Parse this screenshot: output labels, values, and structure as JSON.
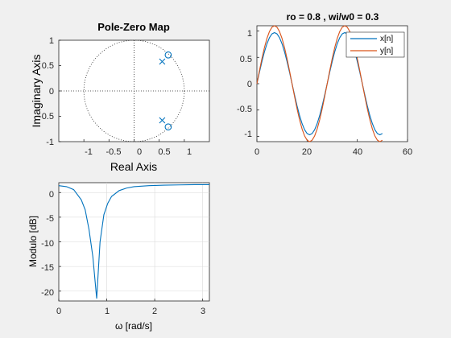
{
  "colors": {
    "blue": "#0072BD",
    "orange": "#D95319",
    "axis": "#262626",
    "grid": "#d9d9d9",
    "figure_bg": "#f0f0f0",
    "axes_bg": "#ffffff"
  },
  "chart_data": [
    {
      "type": "scatter",
      "title": "Pole-Zero Map",
      "xlabel": "Real Axis",
      "ylabel": "Imaginary Axis",
      "xlim": [
        -1.5,
        1.5
      ],
      "ylim": [
        -1,
        1
      ],
      "x_ticks": [
        "-1",
        "-0.5",
        "0",
        "0.5",
        "1"
      ],
      "y_ticks": [
        "1",
        "0.5",
        "0",
        "-0.5",
        "-1"
      ],
      "unit_circle": true,
      "poles": [
        [
          0.56,
          0.58
        ],
        [
          0.56,
          -0.58
        ]
      ],
      "zeros": [
        [
          0.68,
          0.71
        ],
        [
          0.68,
          -0.71
        ]
      ],
      "grid": false
    },
    {
      "type": "line",
      "title": "ro = 0.8 , wi/w0 = 0.3",
      "xlim": [
        0,
        60
      ],
      "ylim": [
        -1.1,
        1.1
      ],
      "x_ticks": [
        "0",
        "20",
        "40",
        "60"
      ],
      "y_ticks": [
        "1",
        "0.5",
        "0",
        "-0.5",
        "-1"
      ],
      "legend_position": "top-right",
      "series": [
        {
          "name": "x[n]",
          "color": "#0072BD",
          "amplitude": 0.97,
          "frequency_rad": 0.2244,
          "length": 51
        },
        {
          "name": "y[n]",
          "color": "#D95319",
          "amplitude": 1.1,
          "frequency_rad": 0.2244,
          "length": 51
        }
      ],
      "grid": false
    },
    {
      "type": "line",
      "xlabel": "ω [rad/s]",
      "ylabel": "Modulo [dB]",
      "xlim": [
        0,
        3.14
      ],
      "ylim": [
        -22,
        2
      ],
      "x_ticks": [
        "0",
        "1",
        "2",
        "3"
      ],
      "y_ticks": [
        "0",
        "-5",
        "-10",
        "-15",
        "-20"
      ],
      "notch_frequency": 0.785,
      "series": [
        {
          "color": "#0072BD",
          "x": [
            0,
            0.16,
            0.31,
            0.47,
            0.55,
            0.63,
            0.71,
            0.79,
            0.86,
            0.94,
            1.02,
            1.1,
            1.26,
            1.41,
            1.57,
            1.88,
            2.2,
            2.51,
            2.83,
            3.14
          ],
          "y": [
            1.4,
            1.2,
            0.6,
            -1.5,
            -3.5,
            -7.5,
            -13,
            -21.5,
            -10,
            -4.5,
            -2.2,
            -0.8,
            0.4,
            0.9,
            1.2,
            1.4,
            1.5,
            1.55,
            1.6,
            1.6
          ]
        }
      ],
      "grid": true
    }
  ]
}
